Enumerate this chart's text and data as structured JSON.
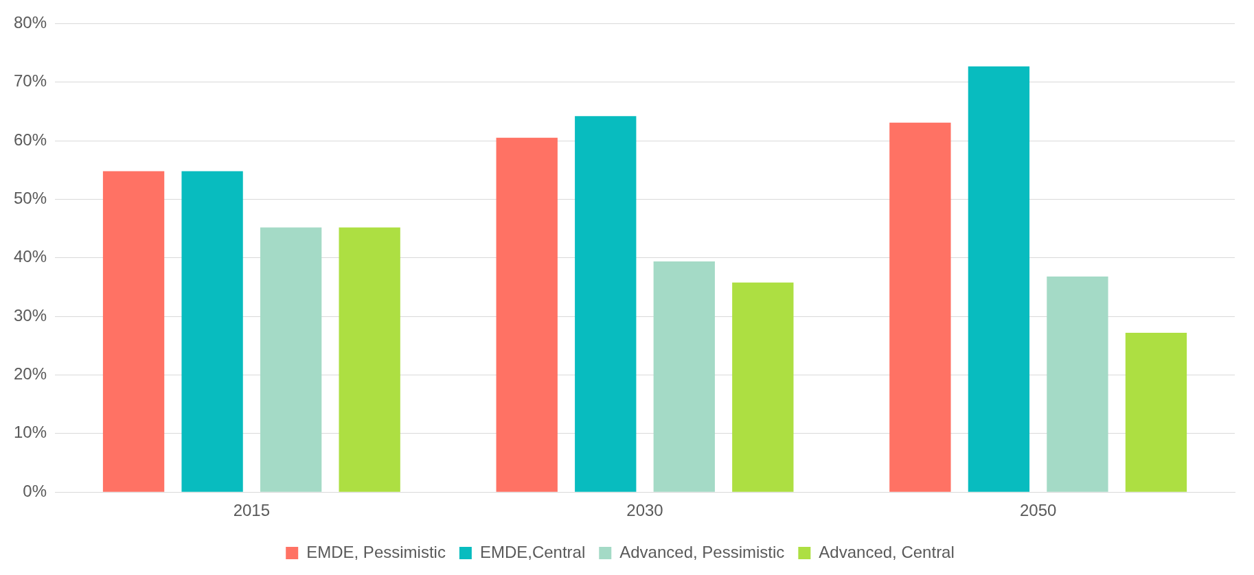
{
  "chart_data": {
    "type": "bar",
    "categories": [
      "2015",
      "2030",
      "2050"
    ],
    "series": [
      {
        "name": "EMDE, Pessimistic",
        "color": "#ff7264",
        "values": [
          54.8,
          60.5,
          63.1
        ]
      },
      {
        "name": "EMDE,Central",
        "color": "#08bcbf",
        "values": [
          54.8,
          64.2,
          72.7
        ]
      },
      {
        "name": "Advanced, Pessimistic",
        "color": "#a4dac6",
        "values": [
          45.2,
          39.4,
          36.8
        ]
      },
      {
        "name": "Advanced, Central",
        "color": "#addf42",
        "values": [
          45.2,
          35.8,
          27.2
        ]
      }
    ],
    "ylim": [
      0,
      80
    ],
    "yticks": [
      {
        "value": 0,
        "label": "0%"
      },
      {
        "value": 10,
        "label": "10%"
      },
      {
        "value": 20,
        "label": "20%"
      },
      {
        "value": 30,
        "label": "30%"
      },
      {
        "value": 40,
        "label": "40%"
      },
      {
        "value": 50,
        "label": "50%"
      },
      {
        "value": 60,
        "label": "60%"
      },
      {
        "value": 70,
        "label": "70%"
      },
      {
        "value": 80,
        "label": "80%"
      }
    ],
    "grid": "y",
    "legend": "bottom"
  }
}
